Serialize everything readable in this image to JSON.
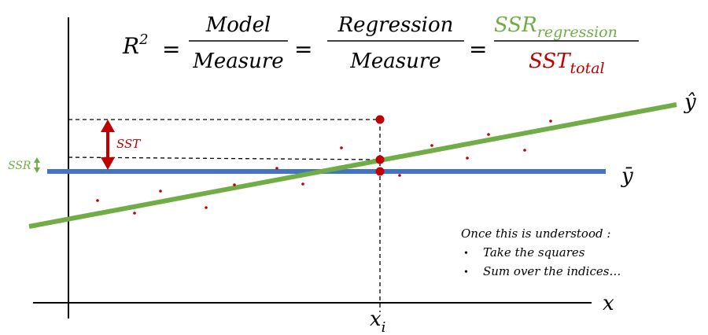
{
  "formula": {
    "lhs": "R",
    "lhs_exponent": "2",
    "eq": "=",
    "frac1_num": "Model",
    "frac1_den": "Measure",
    "frac2_num": "Regression",
    "frac2_den": "Measure",
    "frac3_num": "SSR",
    "frac3_num_sub": "regression",
    "frac3_den": "SST",
    "frac3_den_sub": "total"
  },
  "labels": {
    "sst": "SST",
    "ssr": "SSR",
    "y_hat": "ŷ",
    "y_bar": "ȳ",
    "x_axis": "x",
    "x_i": "x",
    "x_i_sub": "i"
  },
  "notes": {
    "heading": "Once this is understood :",
    "bullets": [
      "Take the squares",
      "Sum over the indices…"
    ]
  },
  "colors": {
    "green": "#70ad47",
    "blue": "#4472c4",
    "red": "#c00000",
    "axis": "#000000"
  }
}
